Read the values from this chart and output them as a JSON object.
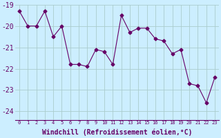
{
  "x": [
    0,
    1,
    2,
    3,
    4,
    5,
    6,
    7,
    8,
    9,
    10,
    11,
    12,
    13,
    14,
    15,
    16,
    17,
    18,
    19,
    20,
    21,
    22,
    23
  ],
  "y": [
    -19.3,
    -20.0,
    -20.0,
    -19.3,
    -20.5,
    -20.0,
    -21.8,
    -21.8,
    -21.9,
    -21.1,
    -21.2,
    -21.8,
    -19.5,
    -20.3,
    -20.1,
    -20.1,
    -20.6,
    -20.7,
    -21.3,
    -21.1,
    -22.7,
    -22.8,
    -23.6,
    -22.4
  ],
  "line_color": "#660066",
  "marker": "D",
  "marker_size": 2.5,
  "bg_color": "#cceeff",
  "grid_color": "#aacccc",
  "xlabel": "Windchill (Refroidissement éolien,°C)",
  "xlabel_fontsize": 7,
  "tick_label_color": "#660066",
  "ylim": [
    -24.4,
    -19.0
  ],
  "yticks": [
    -24,
    -23,
    -22,
    -21,
    -20,
    -19
  ],
  "xticks": [
    0,
    1,
    2,
    3,
    4,
    5,
    6,
    7,
    8,
    9,
    10,
    11,
    12,
    13,
    14,
    15,
    16,
    17,
    18,
    19,
    20,
    21,
    22,
    23
  ],
  "xlim": [
    -0.5,
    23.5
  ]
}
